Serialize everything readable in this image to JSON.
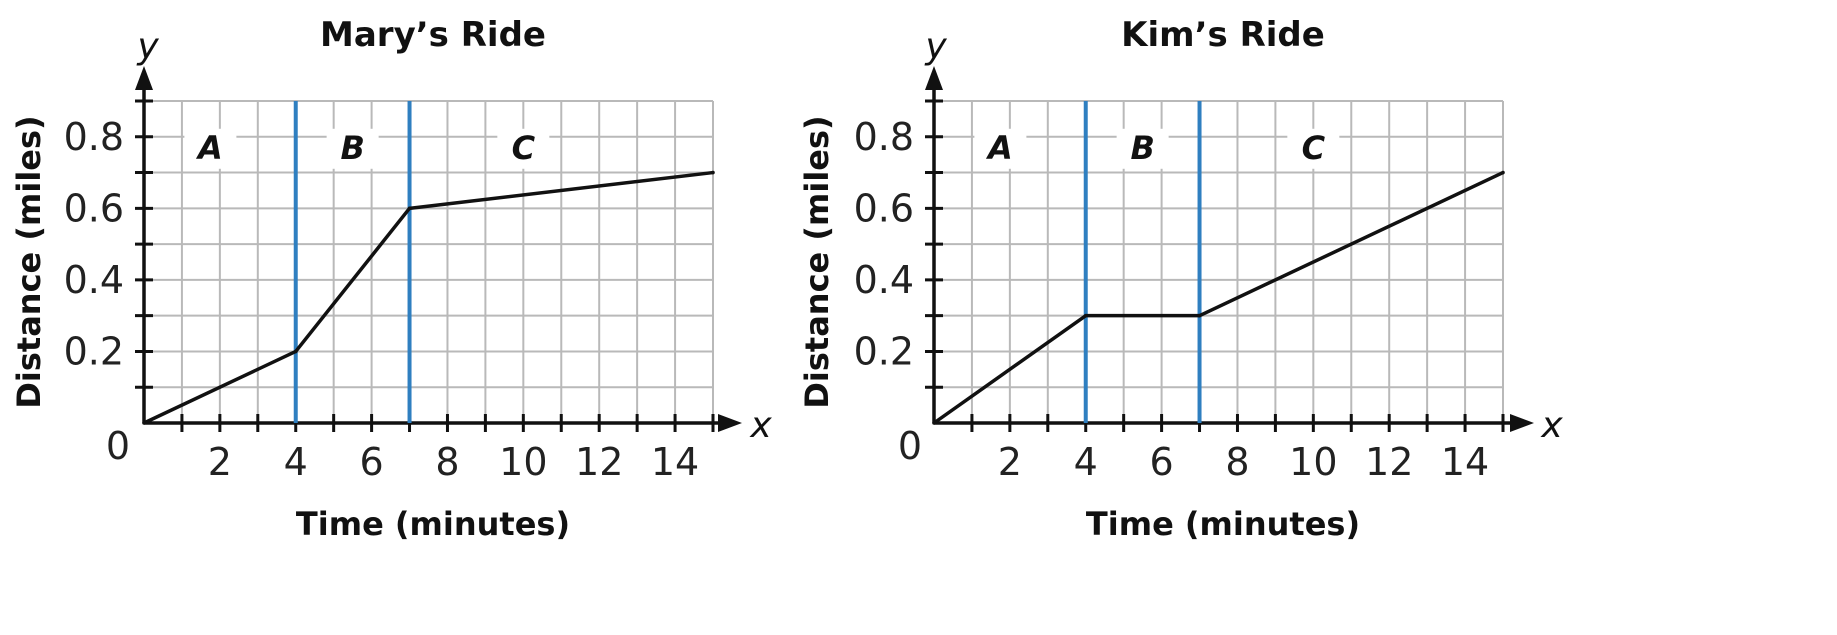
{
  "chart_data": [
    {
      "type": "line",
      "title": "Mary’s Ride",
      "xlabel": "Time (minutes)",
      "ylabel": "Distance (miles)",
      "x_var": "x",
      "y_var": "y",
      "origin_label": "0",
      "xlim": [
        0,
        15
      ],
      "ylim": [
        0,
        0.9
      ],
      "x_ticks": [
        2,
        4,
        6,
        8,
        10,
        12,
        14
      ],
      "y_ticks": [
        0.2,
        0.4,
        0.6,
        0.8
      ],
      "x_tick_labels": [
        "2",
        "4",
        "6",
        "8",
        "10",
        "12",
        "14"
      ],
      "y_tick_labels": [
        "0.2",
        "0.4",
        "0.6",
        "0.8"
      ],
      "grid": true,
      "dividers_x": [
        4,
        7
      ],
      "regions": [
        {
          "label": "A",
          "x": 1.75
        },
        {
          "label": "B",
          "x": 5.5
        },
        {
          "label": "C",
          "x": 10
        }
      ],
      "series": [
        {
          "x": [
            0,
            4,
            7,
            15
          ],
          "y": [
            0,
            0.2,
            0.6,
            0.7
          ]
        }
      ]
    },
    {
      "type": "line",
      "title": "Kim’s Ride",
      "xlabel": "Time (minutes)",
      "ylabel": "Distance (miles)",
      "x_var": "x",
      "y_var": "y",
      "origin_label": "0",
      "xlim": [
        0,
        15
      ],
      "ylim": [
        0,
        0.9
      ],
      "x_ticks": [
        2,
        4,
        6,
        8,
        10,
        12,
        14
      ],
      "y_ticks": [
        0.2,
        0.4,
        0.6,
        0.8
      ],
      "x_tick_labels": [
        "2",
        "4",
        "6",
        "8",
        "10",
        "12",
        "14"
      ],
      "y_tick_labels": [
        "0.2",
        "0.4",
        "0.6",
        "0.8"
      ],
      "grid": true,
      "dividers_x": [
        4,
        7
      ],
      "regions": [
        {
          "label": "A",
          "x": 1.75
        },
        {
          "label": "B",
          "x": 5.5
        },
        {
          "label": "C",
          "x": 10
        }
      ],
      "series": [
        {
          "x": [
            0,
            4,
            7,
            15
          ],
          "y": [
            0,
            0.3,
            0.3,
            0.7
          ]
        }
      ]
    }
  ]
}
